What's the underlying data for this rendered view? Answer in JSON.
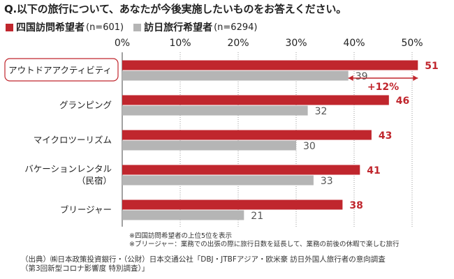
{
  "question": "Q.以下の旅行について、あなたが今後実施したいものをお答えください。",
  "legend": [
    {
      "name": "四国訪問希望者",
      "n": "(n=601)",
      "color": "#c0262d"
    },
    {
      "name": "訪日旅行希望者",
      "n": "(n=6294)",
      "color": "#b5b5b5"
    }
  ],
  "chart_data": {
    "type": "bar",
    "orientation": "horizontal",
    "xlim": [
      0,
      50
    ],
    "ticks": [
      "0%",
      "10%",
      "20%",
      "30%",
      "40%",
      "50%"
    ],
    "categories": [
      {
        "label": [
          "アウトドアアクティビティ"
        ],
        "highlight": true
      },
      {
        "label": [
          "グランピング"
        ]
      },
      {
        "label": [
          "マイクロツーリズム"
        ]
      },
      {
        "label": [
          "バケーションレンタル",
          "（民宿）"
        ]
      },
      {
        "label": [
          "ブリージャー"
        ]
      }
    ],
    "series": [
      {
        "name": "四国訪問希望者",
        "color": "#c0262d",
        "label_color": "#c0262d",
        "values": [
          51,
          46,
          43,
          41,
          38
        ]
      },
      {
        "name": "訪日旅行希望者",
        "color": "#b5b5b5",
        "label_color": "#555555",
        "values": [
          39,
          32,
          30,
          33,
          21
        ]
      }
    ],
    "annotation": {
      "text": "+12%",
      "category_index": 0,
      "color": "#c0262d"
    },
    "grid": true
  },
  "notes": [
    "※四国訪問希望者の上位5位を表示",
    "※ブリージャー：業務での出張の際に旅行日数を延長して、業務の前後の休暇で楽しむ旅行"
  ],
  "source": [
    "（出典）㈱日本政策投資銀行・（公財）日本交通公社「DBJ・JTBFアジア・欧米豪 訪日外国人旅行者の意向調査",
    "（第3回新型コロナ影響度 特別調査）」"
  ]
}
